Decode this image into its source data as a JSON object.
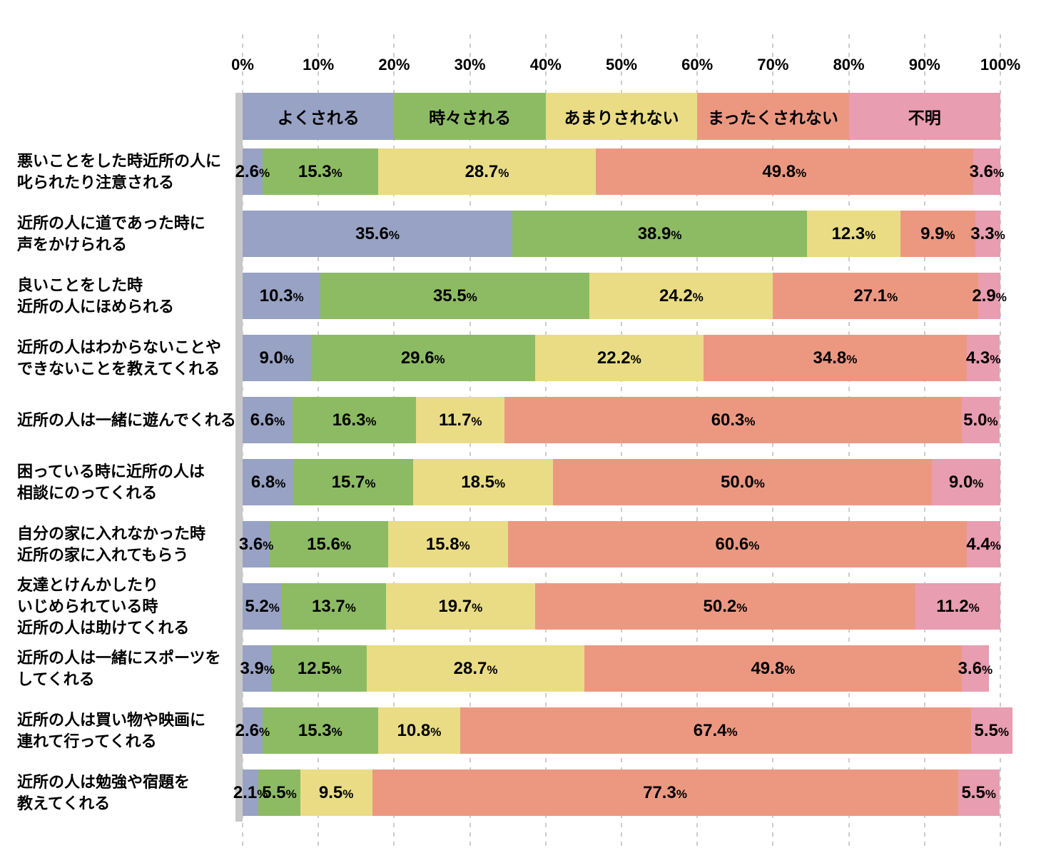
{
  "chart_data": {
    "type": "bar",
    "orientation": "horizontal",
    "stacked": true,
    "title": "",
    "x_axis": {
      "tick_labels": [
        "0%",
        "10%",
        "20%",
        "30%",
        "40%",
        "50%",
        "60%",
        "70%",
        "80%",
        "90%",
        "100%"
      ],
      "min": 0,
      "max": 100,
      "grid": "dashed-vertical"
    },
    "legend": {
      "position": "top-stacked-header-bar",
      "items": [
        {
          "label": "よくされる",
          "color": "#97a2c4"
        },
        {
          "label": "時々される",
          "color": "#8dbb64"
        },
        {
          "label": "あまりされない",
          "color": "#e9dc85"
        },
        {
          "label": "まったくされない",
          "color": "#ec9881"
        },
        {
          "label": "不明",
          "color": "#e89db1"
        }
      ]
    },
    "categories": [
      "悪いことをした時近所の人に\n叱られたり注意される",
      "近所の人に道であった時に\n声をかけられる",
      "良いことをした時\n近所の人にほめられる",
      "近所の人はわからないことや\nできないことを教えてくれる",
      "近所の人は一緒に遊んでくれる",
      "困っている時に近所の人は\n相談にのってくれる",
      "自分の家に入れなかった時\n近所の家に入れてもらう",
      "友達とけんかしたり\nいじめられている時\n近所の人は助けてくれる",
      "近所の人は一緒にスポーツを\nしてくれる",
      "近所の人は買い物や映画に\n連れて行ってくれる",
      "近所の人は勉強や宿題を\n教えてくれる"
    ],
    "series": [
      {
        "name": "よくされる",
        "values": [
          2.6,
          35.6,
          10.3,
          9.0,
          6.6,
          6.8,
          3.6,
          5.2,
          3.9,
          2.6,
          2.1
        ]
      },
      {
        "name": "時々される",
        "values": [
          15.3,
          38.9,
          35.5,
          29.6,
          16.3,
          15.7,
          15.6,
          13.7,
          12.5,
          15.3,
          5.5
        ]
      },
      {
        "name": "あまりされない",
        "values": [
          28.7,
          12.3,
          24.2,
          22.2,
          11.7,
          18.5,
          15.8,
          19.7,
          28.7,
          10.8,
          9.5
        ]
      },
      {
        "name": "まったくされない",
        "values": [
          49.8,
          9.9,
          27.1,
          34.8,
          60.3,
          50.0,
          60.6,
          50.2,
          49.8,
          67.4,
          77.3
        ]
      },
      {
        "name": "不明",
        "values": [
          3.6,
          3.3,
          2.9,
          4.3,
          5.0,
          9.0,
          4.4,
          11.2,
          3.6,
          5.5,
          5.5
        ]
      }
    ],
    "value_label_suffix": "%",
    "value_label_decimals": 1
  },
  "colors": {
    "background": "#ffffff",
    "grid": "#cdcdcd",
    "axis_strip": "#c8c8c8",
    "text": "#000000"
  }
}
